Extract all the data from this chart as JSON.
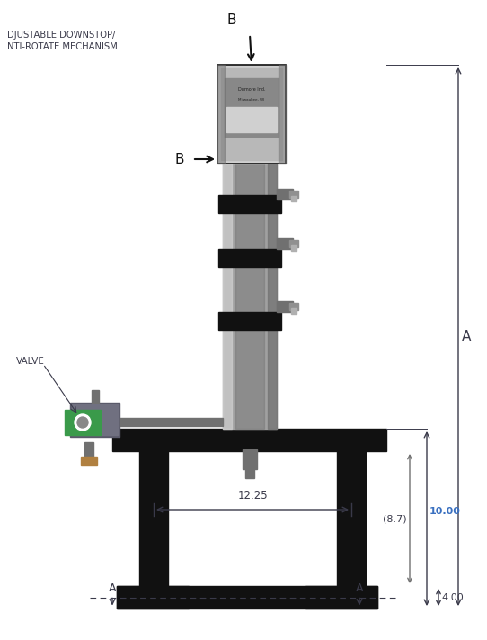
{
  "bg_color": "#ffffff",
  "text_color": "#3a3a4a",
  "dim_color": "#3a3a4a",
  "machine_gray": "#a0a0a0",
  "machine_dgray": "#707070",
  "machine_lgray": "#d0d0d0",
  "black_color": "#111111",
  "green_color": "#3a9a4a",
  "blue_dim": "#3a70c0",
  "label_downstop_1": "DJUSTABLE DOWNSTOP/",
  "label_downstop_2": "NTI-ROTATE MECHANISM",
  "label_valve": "VALVE",
  "label_B": "B",
  "label_A": "A",
  "dim_1225": "12.25",
  "dim_87": "(8.7)",
  "dim_1000": "10.00",
  "dim_400": "4.00"
}
